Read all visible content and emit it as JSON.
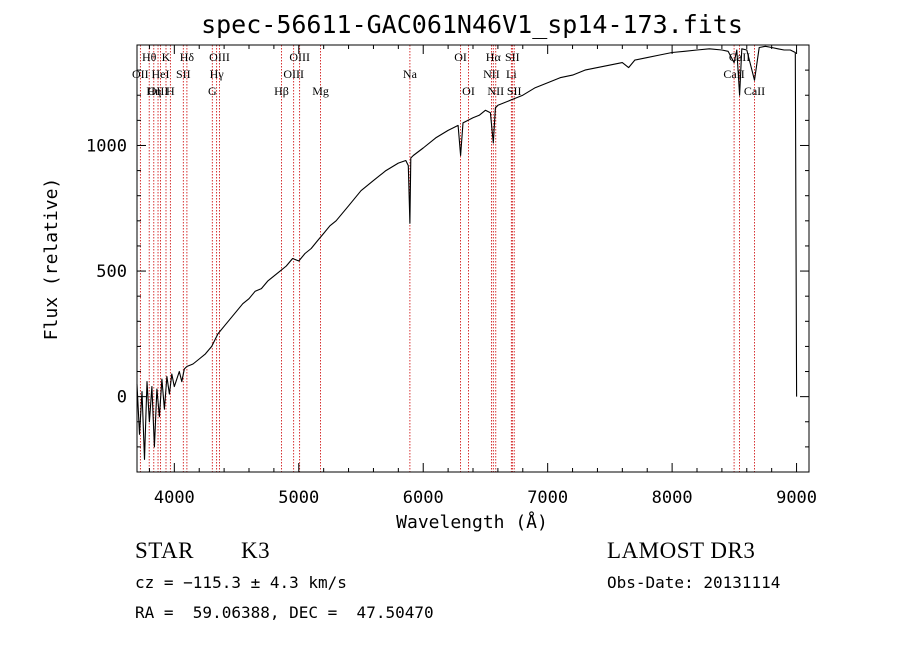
{
  "chart_data": {
    "type": "line",
    "title": "spec-56611-GAC061N46V1_sp14-173.fits",
    "xlabel": "Wavelength (Å)",
    "ylabel": "Flux (relative)",
    "xlim": [
      3700,
      9100
    ],
    "ylim": [
      -300,
      1400
    ],
    "xticks": [
      4000,
      5000,
      6000,
      7000,
      8000,
      9000
    ],
    "xtick_labels": [
      "4000",
      "5000",
      "6000",
      "7000",
      "8000",
      "9000"
    ],
    "yticks": [
      0,
      500,
      1000
    ],
    "ytick_labels": [
      "0",
      "500",
      "1000"
    ],
    "series": [
      {
        "name": "spectrum",
        "x": [
          3700,
          3720,
          3740,
          3760,
          3780,
          3800,
          3820,
          3840,
          3860,
          3880,
          3900,
          3920,
          3940,
          3960,
          3980,
          4000,
          4020,
          4040,
          4060,
          4080,
          4100,
          4150,
          4200,
          4250,
          4300,
          4350,
          4400,
          4450,
          4500,
          4550,
          4600,
          4650,
          4700,
          4750,
          4800,
          4850,
          4900,
          4950,
          5000,
          5050,
          5100,
          5150,
          5200,
          5250,
          5300,
          5400,
          5500,
          5600,
          5700,
          5800,
          5860,
          5880,
          5893,
          5900,
          5920,
          6000,
          6100,
          6200,
          6280,
          6300,
          6320,
          6400,
          6450,
          6500,
          6540,
          6563,
          6580,
          6600,
          6700,
          6800,
          6900,
          7000,
          7100,
          7200,
          7300,
          7400,
          7500,
          7600,
          7650,
          7700,
          7800,
          7900,
          8000,
          8100,
          8200,
          8300,
          8400,
          8450,
          8498,
          8520,
          8542,
          8560,
          8600,
          8662,
          8700,
          8750,
          8800,
          8850,
          8900,
          8950,
          8990,
          9000
        ],
        "y": [
          50,
          -150,
          20,
          -250,
          60,
          -100,
          40,
          -200,
          30,
          -80,
          70,
          -50,
          80,
          10,
          90,
          40,
          70,
          100,
          60,
          110,
          120,
          130,
          150,
          170,
          200,
          250,
          280,
          310,
          340,
          370,
          390,
          420,
          430,
          460,
          480,
          500,
          520,
          550,
          540,
          570,
          590,
          620,
          650,
          680,
          700,
          760,
          820,
          860,
          900,
          930,
          940,
          920,
          690,
          950,
          960,
          990,
          1030,
          1060,
          1080,
          960,
          1090,
          1110,
          1120,
          1140,
          1130,
          1010,
          1150,
          1160,
          1180,
          1200,
          1230,
          1250,
          1270,
          1280,
          1300,
          1310,
          1320,
          1330,
          1310,
          1340,
          1350,
          1360,
          1370,
          1375,
          1380,
          1385,
          1380,
          1375,
          1330,
          1380,
          1200,
          1385,
          1380,
          1260,
          1390,
          1395,
          1390,
          1385,
          1380,
          1380,
          1370,
          0
        ]
      }
    ],
    "line_ids": [
      {
        "label": "Hθ",
        "wavelength": 3798,
        "row": 0
      },
      {
        "label": "K",
        "wavelength": 3933,
        "row": 0
      },
      {
        "label": "Hδ",
        "wavelength": 4101,
        "row": 0
      },
      {
        "label": "OIII",
        "wavelength": 4363,
        "row": 0
      },
      {
        "label": "OIII",
        "wavelength": 5007,
        "row": 0
      },
      {
        "label": "OI",
        "wavelength": 6300,
        "row": 0
      },
      {
        "label": "Hα",
        "wavelength": 6563,
        "row": 0
      },
      {
        "label": "SII",
        "wavelength": 6716,
        "row": 0
      },
      {
        "label": "CaII",
        "wavelength": 8542,
        "row": 0
      },
      {
        "label": "OII",
        "wavelength": 3727,
        "row": 1
      },
      {
        "label": "HeI",
        "wavelength": 3889,
        "row": 1
      },
      {
        "label": "SII",
        "wavelength": 4072,
        "row": 1
      },
      {
        "label": "Hγ",
        "wavelength": 4340,
        "row": 1
      },
      {
        "label": "OIII",
        "wavelength": 4959,
        "row": 1
      },
      {
        "label": "Na",
        "wavelength": 5893,
        "row": 1
      },
      {
        "label": "NII",
        "wavelength": 6548,
        "row": 1
      },
      {
        "label": "Li",
        "wavelength": 6708,
        "row": 1
      },
      {
        "label": "CaII",
        "wavelength": 8498,
        "row": 1
      },
      {
        "label": "OIII",
        "wavelength": 3869,
        "row": 2
      },
      {
        "label": "Hη",
        "wavelength": 3835,
        "row": 2
      },
      {
        "label": "H",
        "wavelength": 3968,
        "row": 2
      },
      {
        "label": "G",
        "wavelength": 4305,
        "row": 2
      },
      {
        "label": "Hβ",
        "wavelength": 4861,
        "row": 2
      },
      {
        "label": "Mg",
        "wavelength": 5175,
        "row": 2
      },
      {
        "label": "OI",
        "wavelength": 6364,
        "row": 2
      },
      {
        "label": "NII",
        "wavelength": 6583,
        "row": 2
      },
      {
        "label": "SII",
        "wavelength": 6731,
        "row": 2
      },
      {
        "label": "CaII",
        "wavelength": 8662,
        "row": 2
      }
    ],
    "line_id_color": "#cc0000"
  },
  "info": {
    "object_class": "STAR",
    "subclass": "K3",
    "survey": "LAMOST DR3",
    "redshift_text": "cz = −115.3 ± 4.3 km/s",
    "obs_date": "Obs-Date: 20131114",
    "coords": "RA =  59.06388, DEC =  47.50470"
  }
}
